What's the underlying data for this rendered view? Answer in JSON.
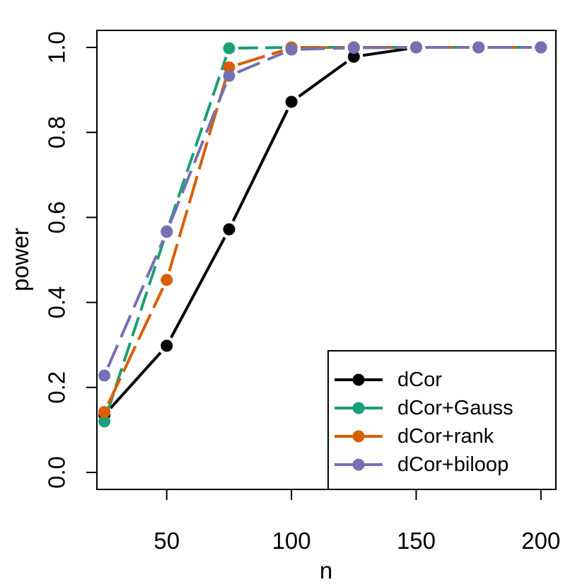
{
  "chart_data": {
    "type": "line",
    "title": "",
    "xlabel": "n",
    "ylabel": "power",
    "xlim": [
      22,
      206
    ],
    "ylim": [
      -0.04,
      1.04
    ],
    "xticks": [
      50,
      100,
      150,
      200
    ],
    "yticks": [
      0.0,
      0.2,
      0.4,
      0.6,
      0.8,
      1.0
    ],
    "xtick_labels": [
      "50",
      "100",
      "150",
      "200"
    ],
    "ytick_labels": [
      "0.0",
      "0.2",
      "0.4",
      "0.6",
      "0.8",
      "1.0"
    ],
    "grid": false,
    "legend_position": "bottom-right",
    "x": [
      25,
      50,
      75,
      100,
      125,
      150,
      175,
      200
    ],
    "series": [
      {
        "name": "dCor",
        "color": "#000000",
        "values": [
          0.135,
          0.298,
          0.572,
          0.872,
          0.978,
          1.0,
          1.0,
          1.0
        ]
      },
      {
        "name": "dCor+Gauss",
        "color": "#1b9e77",
        "values": [
          0.12,
          0.567,
          0.998,
          1.0,
          1.0,
          1.0,
          1.0,
          1.0
        ]
      },
      {
        "name": "dCor+rank",
        "color": "#d95f02",
        "values": [
          0.142,
          0.453,
          0.953,
          0.999,
          1.0,
          1.0,
          1.0,
          1.0
        ]
      },
      {
        "name": "dCor+biloop",
        "color": "#7570b3",
        "values": [
          0.228,
          0.566,
          0.933,
          0.995,
          0.999,
          1.0,
          1.0,
          1.0
        ]
      }
    ]
  }
}
